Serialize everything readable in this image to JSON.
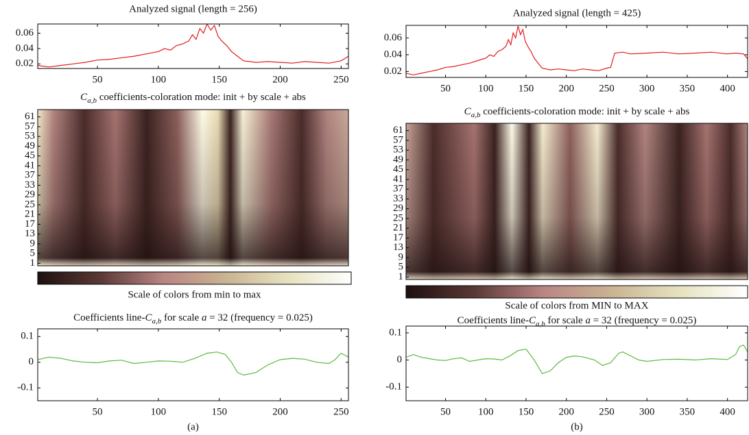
{
  "chart_data": [
    {
      "type": "line",
      "title": "Analyzed signal (length = 256)",
      "x": [
        1,
        10,
        20,
        30,
        40,
        50,
        60,
        70,
        80,
        90,
        100,
        105,
        110,
        115,
        120,
        125,
        128,
        131,
        134,
        137,
        140,
        143,
        146,
        149,
        152,
        156,
        160,
        165,
        170,
        180,
        190,
        200,
        210,
        220,
        230,
        240,
        250,
        256
      ],
      "values": [
        0.018,
        0.016,
        0.018,
        0.02,
        0.022,
        0.025,
        0.026,
        0.028,
        0.03,
        0.033,
        0.036,
        0.04,
        0.038,
        0.044,
        0.046,
        0.05,
        0.058,
        0.052,
        0.066,
        0.06,
        0.072,
        0.064,
        0.07,
        0.056,
        0.05,
        0.044,
        0.036,
        0.03,
        0.024,
        0.022,
        0.023,
        0.022,
        0.021,
        0.023,
        0.022,
        0.021,
        0.024,
        0.03
      ],
      "color": "#e3191c",
      "xlim": [
        1,
        256
      ],
      "ylim": [
        0.014,
        0.072
      ],
      "xticks": [
        50,
        100,
        150,
        200,
        250
      ],
      "yticks": [
        0.02,
        0.04,
        0.06
      ]
    },
    {
      "type": "heatmap",
      "title_parts": [
        "C",
        "a,b",
        " coefficients-coloration mode: init + by scale + abs"
      ],
      "ylim": [
        0,
        64
      ],
      "yticks": [
        1,
        5,
        9,
        13,
        17,
        21,
        25,
        29,
        33,
        37,
        41,
        45,
        49,
        53,
        57,
        61
      ]
    },
    {
      "type": "colorbar",
      "label": "Scale of colors from min to max",
      "colors": [
        "#1e1010",
        "#5a3835",
        "#b98583",
        "#c9b392",
        "#e6e2bf",
        "#ffffff"
      ]
    },
    {
      "type": "line",
      "title_parts": [
        "Coefficients line-",
        "C",
        "a,b",
        " for scale ",
        "a",
        " = 32 (frequency = 0.025)"
      ],
      "x": [
        1,
        10,
        20,
        30,
        40,
        50,
        60,
        70,
        80,
        90,
        100,
        110,
        120,
        130,
        140,
        148,
        155,
        160,
        165,
        170,
        180,
        190,
        200,
        210,
        220,
        230,
        240,
        245,
        250,
        256
      ],
      "values": [
        0.01,
        0.02,
        0.015,
        0.005,
        0,
        -0.002,
        0.005,
        0.008,
        -0.005,
        0,
        0.005,
        0.004,
        0,
        0.015,
        0.035,
        0.04,
        0.03,
        0,
        -0.04,
        -0.05,
        -0.04,
        -0.01,
        0.01,
        0.015,
        0.012,
        0,
        -0.005,
        0.01,
        0.035,
        0.02
      ],
      "color": "#5cb83c",
      "xlim": [
        1,
        256
      ],
      "ylim": [
        -0.15,
        0.13
      ],
      "xticks": [
        50,
        100,
        150,
        200,
        250
      ],
      "yticks": [
        -0.1,
        0,
        0.1
      ],
      "caption": "(a)"
    },
    {
      "type": "line",
      "title": "Analyzed signal (length = 425)",
      "x": [
        1,
        10,
        20,
        30,
        40,
        50,
        60,
        70,
        80,
        90,
        100,
        105,
        110,
        115,
        120,
        125,
        128,
        131,
        134,
        137,
        140,
        143,
        146,
        149,
        152,
        156,
        160,
        165,
        170,
        180,
        190,
        200,
        210,
        220,
        230,
        240,
        250,
        255,
        260,
        270,
        280,
        300,
        320,
        340,
        360,
        380,
        400,
        410,
        420,
        425
      ],
      "values": [
        0.018,
        0.016,
        0.018,
        0.02,
        0.022,
        0.025,
        0.026,
        0.028,
        0.03,
        0.033,
        0.036,
        0.04,
        0.038,
        0.044,
        0.046,
        0.05,
        0.058,
        0.052,
        0.066,
        0.06,
        0.074,
        0.064,
        0.07,
        0.056,
        0.05,
        0.044,
        0.036,
        0.03,
        0.024,
        0.022,
        0.023,
        0.022,
        0.021,
        0.023,
        0.022,
        0.021,
        0.024,
        0.025,
        0.042,
        0.043,
        0.041,
        0.042,
        0.043,
        0.041,
        0.042,
        0.043,
        0.041,
        0.042,
        0.041,
        0.035
      ],
      "color": "#e3191c",
      "xlim": [
        1,
        425
      ],
      "ylim": [
        0.013,
        0.075
      ],
      "xticks": [
        50,
        100,
        150,
        200,
        250,
        300,
        350,
        400
      ],
      "yticks": [
        0.02,
        0.04,
        0.06
      ]
    },
    {
      "type": "heatmap",
      "title_parts": [
        "C",
        "a,b",
        " coefficients-coloration mode: init + by scale + abs"
      ],
      "ylim": [
        0,
        64
      ],
      "yticks": [
        1,
        5,
        9,
        13,
        17,
        21,
        25,
        29,
        33,
        37,
        41,
        45,
        49,
        53,
        57,
        61
      ]
    },
    {
      "type": "colorbar",
      "label": "Scale of colors from MIN to MAX",
      "colors": [
        "#1e1010",
        "#5a3835",
        "#b98583",
        "#c9b392",
        "#e6e2bf",
        "#ffffff"
      ]
    },
    {
      "type": "line",
      "title_parts": [
        "Coefficients line-",
        "C",
        "a,b",
        " for scale ",
        "a",
        " = 32 (frequency = 0.025)"
      ],
      "x": [
        1,
        10,
        20,
        30,
        40,
        50,
        60,
        70,
        80,
        90,
        100,
        110,
        120,
        130,
        140,
        150,
        160,
        170,
        180,
        190,
        200,
        210,
        220,
        235,
        245,
        255,
        265,
        270,
        280,
        290,
        300,
        320,
        340,
        360,
        380,
        400,
        410,
        415,
        420,
        425
      ],
      "values": [
        0.01,
        0.02,
        0.01,
        0.005,
        0,
        -0.002,
        0.005,
        0.008,
        -0.005,
        0,
        0.005,
        0.004,
        0,
        0.015,
        0.035,
        0.04,
        0,
        -0.05,
        -0.04,
        -0.01,
        0.01,
        0.015,
        0.012,
        0,
        -0.02,
        -0.01,
        0.025,
        0.03,
        0.015,
        0,
        -0.005,
        0.002,
        0.003,
        0,
        0.005,
        0.002,
        0.02,
        0.05,
        0.055,
        0.03
      ],
      "color": "#5cb83c",
      "xlim": [
        1,
        425
      ],
      "ylim": [
        -0.15,
        0.125
      ],
      "xticks": [
        50,
        100,
        150,
        200,
        250,
        300,
        350,
        400
      ],
      "yticks": [
        -0.1,
        0,
        0.1
      ],
      "caption": "(b)"
    }
  ]
}
